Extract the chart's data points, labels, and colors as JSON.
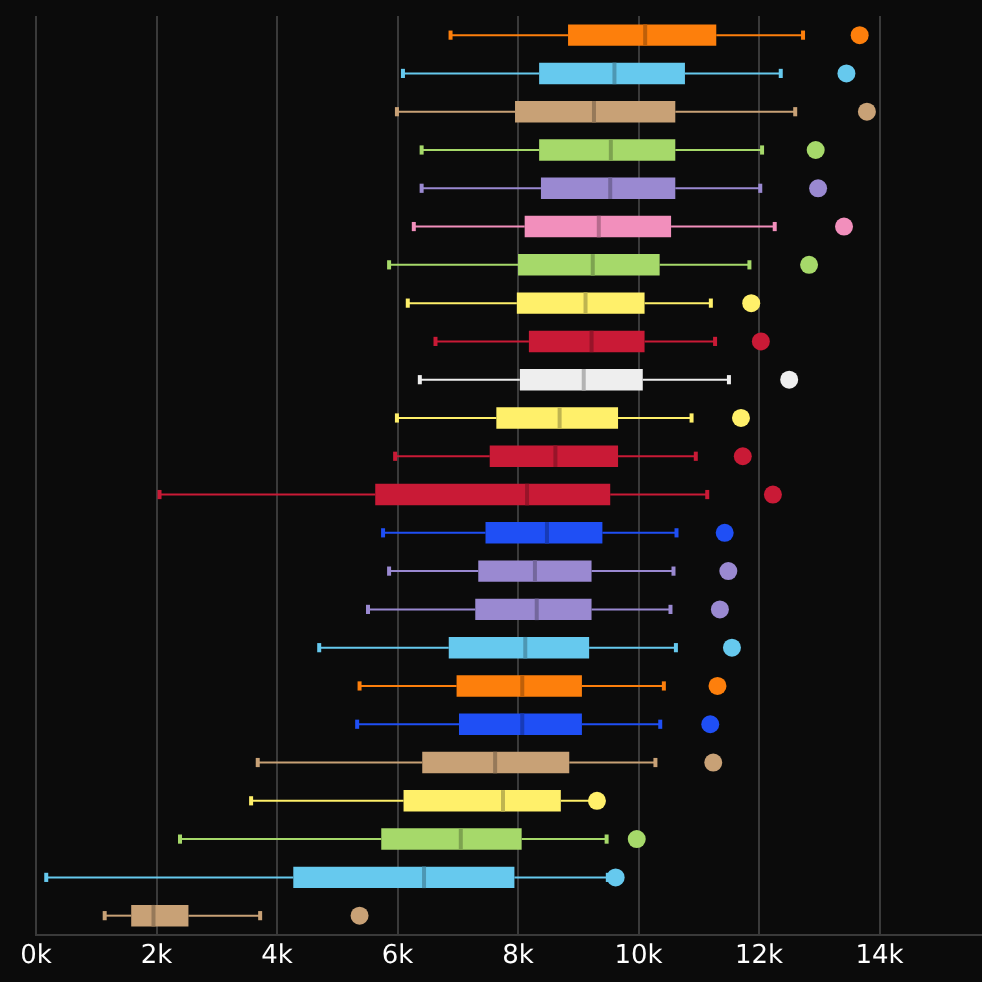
{
  "chart_data": {
    "type": "box",
    "orientation": "horizontal",
    "tick_labels": "x",
    "grid": "x",
    "legend": false,
    "categories": [
      null,
      null,
      null,
      null,
      null,
      null,
      null,
      null,
      null,
      null,
      null,
      null,
      null,
      null,
      null,
      null,
      null,
      null,
      null,
      null,
      null,
      null,
      null,
      null
    ],
    "xlim": [
      0,
      15700
    ],
    "xticks": [
      {
        "value": 0,
        "label": "0k"
      },
      {
        "value": 2000,
        "label": "2k"
      },
      {
        "value": 4000,
        "label": "4k"
      },
      {
        "value": 6000,
        "label": "6k"
      },
      {
        "value": 8000,
        "label": "8k"
      },
      {
        "value": 10000,
        "label": "10k"
      },
      {
        "value": 12000,
        "label": "12k"
      },
      {
        "value": 14000,
        "label": "14k"
      }
    ],
    "colors": [
      "#fd7f0c",
      "#66c9ee",
      "#c8a176",
      "#a6d96a",
      "#9a89d1",
      "#f28fbc",
      "#a6d96a",
      "#fff06a",
      "#c91a36",
      "#eeeeee",
      "#fff06a",
      "#c91a36",
      "#c91a36",
      "#1f4ff5",
      "#9a89d1",
      "#9a89d1",
      "#66c9ee",
      "#fd7f0c",
      "#1f4ff5",
      "#c8a176",
      "#fff06a",
      "#a6d96a",
      "#66c9ee",
      "#c8a176"
    ],
    "boxes": [
      {
        "low": 6880,
        "q1": 8830,
        "median": 10110,
        "q3": 11290,
        "high": 12730,
        "outliers": [
          13670
        ]
      },
      {
        "low": 6090,
        "q1": 8350,
        "median": 9600,
        "q3": 10770,
        "high": 12360,
        "outliers": [
          13450
        ]
      },
      {
        "low": 5990,
        "q1": 7950,
        "median": 9260,
        "q3": 10610,
        "high": 12600,
        "outliers": [
          13790
        ]
      },
      {
        "low": 6400,
        "q1": 8350,
        "median": 9540,
        "q3": 10610,
        "high": 12050,
        "outliers": [
          12940
        ]
      },
      {
        "low": 6400,
        "q1": 8380,
        "median": 9530,
        "q3": 10610,
        "high": 12020,
        "outliers": [
          12980
        ]
      },
      {
        "low": 6270,
        "q1": 8110,
        "median": 9340,
        "q3": 10540,
        "high": 12260,
        "outliers": [
          13410
        ]
      },
      {
        "low": 5860,
        "q1": 8000,
        "median": 9240,
        "q3": 10350,
        "high": 11840,
        "outliers": [
          12830
        ]
      },
      {
        "low": 6170,
        "q1": 7980,
        "median": 9120,
        "q3": 10100,
        "high": 11200,
        "outliers": [
          11870
        ]
      },
      {
        "low": 6630,
        "q1": 8180,
        "median": 9220,
        "q3": 10100,
        "high": 11270,
        "outliers": [
          12030
        ]
      },
      {
        "low": 6370,
        "q1": 8030,
        "median": 9090,
        "q3": 10070,
        "high": 11500,
        "outliers": [
          12500
        ]
      },
      {
        "low": 5990,
        "q1": 7640,
        "median": 8690,
        "q3": 9660,
        "high": 10880,
        "outliers": [
          11700
        ]
      },
      {
        "low": 5960,
        "q1": 7530,
        "median": 8620,
        "q3": 9660,
        "high": 10950,
        "outliers": [
          11730
        ]
      },
      {
        "low": 2050,
        "q1": 5630,
        "median": 8150,
        "q3": 9530,
        "high": 11140,
        "outliers": [
          12230
        ]
      },
      {
        "low": 5760,
        "q1": 7460,
        "median": 8480,
        "q3": 9400,
        "high": 10630,
        "outliers": [
          11430
        ]
      },
      {
        "low": 5860,
        "q1": 7340,
        "median": 8280,
        "q3": 9220,
        "high": 10580,
        "outliers": [
          11490
        ]
      },
      {
        "low": 5510,
        "q1": 7290,
        "median": 8310,
        "q3": 9220,
        "high": 10530,
        "outliers": [
          11350
        ]
      },
      {
        "low": 4700,
        "q1": 6850,
        "median": 8120,
        "q3": 9180,
        "high": 10620,
        "outliers": [
          11550
        ]
      },
      {
        "low": 5370,
        "q1": 6980,
        "median": 8070,
        "q3": 9060,
        "high": 10420,
        "outliers": [
          11310
        ]
      },
      {
        "low": 5330,
        "q1": 7020,
        "median": 8070,
        "q3": 9060,
        "high": 10360,
        "outliers": [
          11190
        ]
      },
      {
        "low": 3680,
        "q1": 6410,
        "median": 7620,
        "q3": 8850,
        "high": 10280,
        "outliers": [
          11240
        ]
      },
      {
        "low": 3570,
        "q1": 6100,
        "median": 7750,
        "q3": 8710,
        "high": 9230,
        "outliers": [
          9310
        ]
      },
      {
        "low": 2390,
        "q1": 5730,
        "median": 7050,
        "q3": 8060,
        "high": 9470,
        "outliers": [
          9970
        ]
      },
      {
        "low": 170,
        "q1": 4270,
        "median": 6440,
        "q3": 7940,
        "high": 9490,
        "outliers": [
          9620
        ]
      },
      {
        "low": 1140,
        "q1": 1580,
        "median": 1950,
        "q3": 2530,
        "high": 3720,
        "outliers": [
          5370
        ]
      }
    ]
  }
}
